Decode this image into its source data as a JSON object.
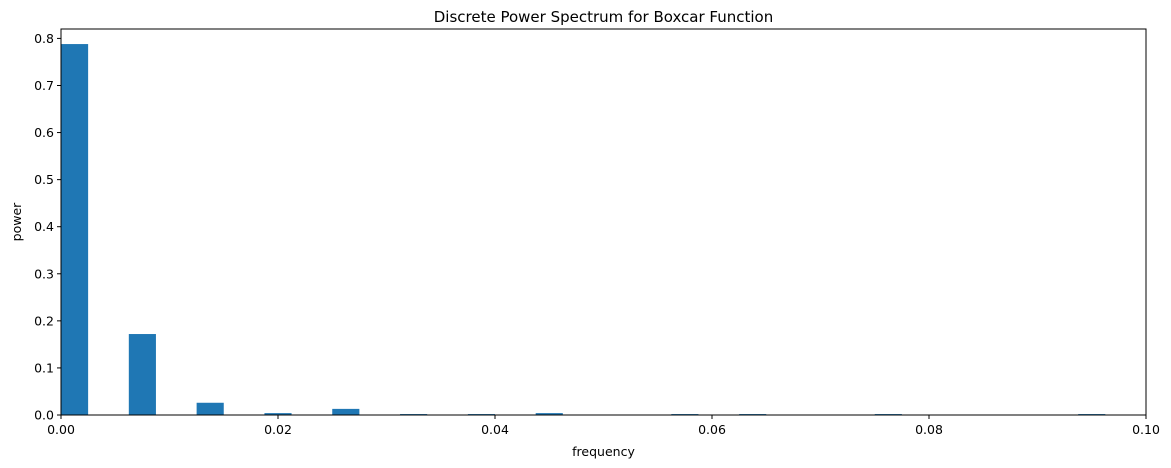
{
  "chart_data": {
    "type": "bar",
    "title": "Discrete Power Spectrum for Boxcar Function",
    "xlabel": "frequency",
    "ylabel": "power",
    "xlim": [
      0,
      0.1
    ],
    "ylim": [
      0,
      0.82
    ],
    "bar_width": 0.0025,
    "x_ticks": [
      "0.00",
      "0.02",
      "0.04",
      "0.06",
      "0.08",
      "0.10"
    ],
    "x_tick_values": [
      0,
      0.02,
      0.04,
      0.06,
      0.08,
      0.1
    ],
    "y_ticks": [
      "0.0",
      "0.1",
      "0.2",
      "0.3",
      "0.4",
      "0.5",
      "0.6",
      "0.7",
      "0.8"
    ],
    "y_tick_values": [
      0,
      0.1,
      0.2,
      0.3,
      0.4,
      0.5,
      0.6,
      0.7,
      0.8
    ],
    "x": [
      0.0,
      0.00625,
      0.0125,
      0.01875,
      0.025,
      0.03125,
      0.0375,
      0.04375,
      0.05625,
      0.0625,
      0.075,
      0.09375
    ],
    "values": [
      0.788,
      0.172,
      0.026,
      0.004,
      0.013,
      0.002,
      0.002,
      0.004,
      0.002,
      0.002,
      0.002,
      0.002
    ],
    "bar_color": "#1f77b4",
    "grid": false,
    "legend": false
  }
}
